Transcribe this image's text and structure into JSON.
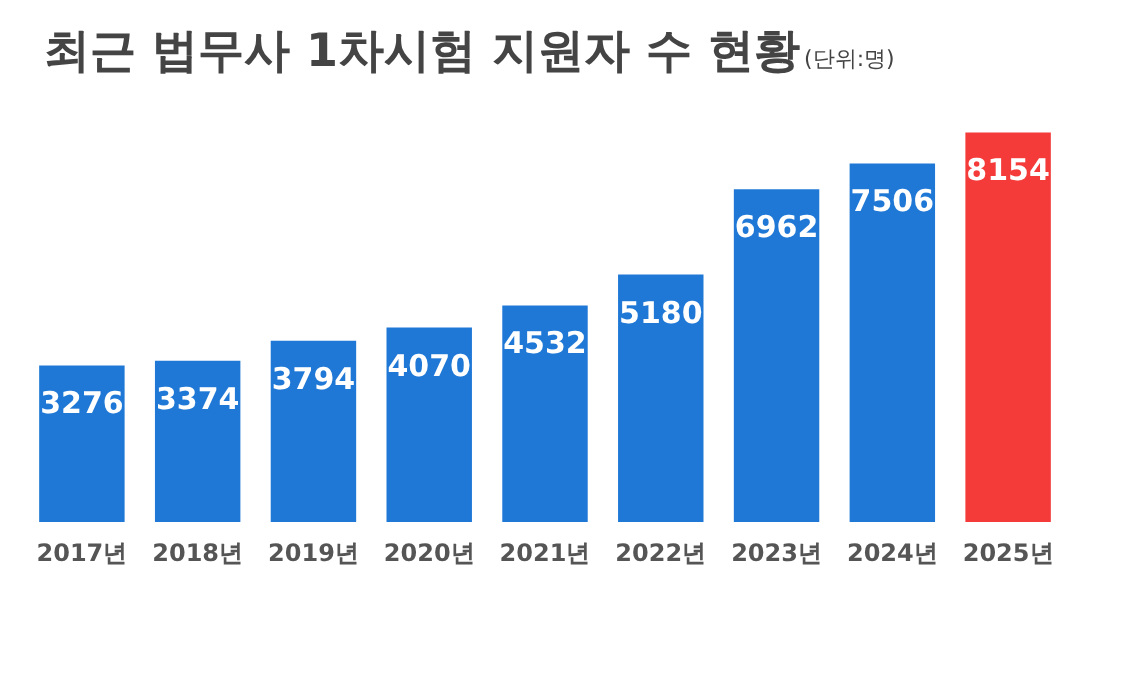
{
  "chart_data": {
    "type": "bar",
    "title": "최근 법무사 1차시험 지원자 수 현황",
    "subtitle": "(단위:명)",
    "categories": [
      "2017년",
      "2018년",
      "2019년",
      "2020년",
      "2021년",
      "2022년",
      "2023년",
      "2024년",
      "2025년"
    ],
    "values": [
      3276,
      3374,
      3794,
      4070,
      4532,
      5180,
      6962,
      7506,
      8154
    ],
    "colors": [
      "#1f78d6",
      "#1f78d6",
      "#1f78d6",
      "#1f78d6",
      "#1f78d6",
      "#1f78d6",
      "#1f78d6",
      "#1f78d6",
      "#f53a3a"
    ],
    "data_labels": true
  }
}
